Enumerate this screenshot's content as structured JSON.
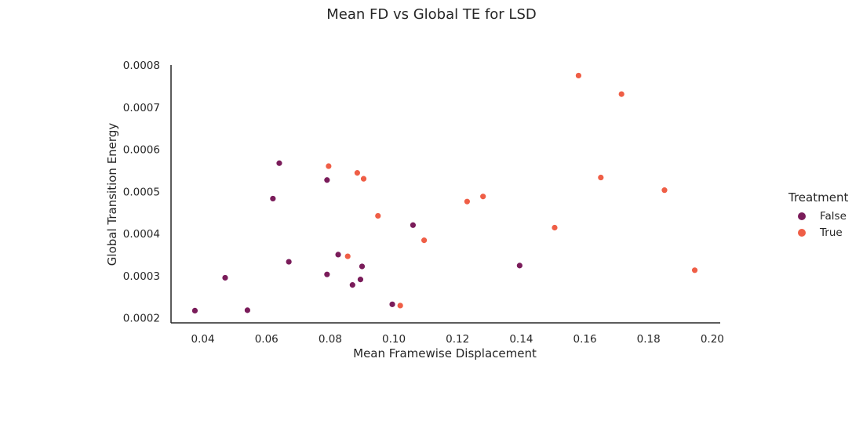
{
  "chart_data": {
    "type": "scatter",
    "title": "Mean FD vs Global TE for LSD",
    "xlabel": "Mean Framewise Displacement",
    "ylabel": "Global Transition Energy",
    "xlim": [
      0.03,
      0.2025
    ],
    "ylim": [
      0.000188,
      0.0008
    ],
    "x_ticks": [
      0.04,
      0.06,
      0.08,
      0.1,
      0.12,
      0.14,
      0.16,
      0.18,
      0.2
    ],
    "x_tick_labels": [
      "0.04",
      "0.06",
      "0.08",
      "0.10",
      "0.12",
      "0.14",
      "0.16",
      "0.18",
      "0.20"
    ],
    "y_ticks": [
      0.0002,
      0.0003,
      0.0004,
      0.0005,
      0.0006,
      0.0007,
      0.0008
    ],
    "y_tick_labels": [
      "0.0002",
      "0.0003",
      "0.0004",
      "0.0005",
      "0.0006",
      "0.0007",
      "0.0008"
    ],
    "grid": false,
    "legend": {
      "title": "Treatment",
      "placement": "right",
      "entries": [
        {
          "label": "False",
          "color": "#7a1c5a"
        },
        {
          "label": "True",
          "color": "#ef5e46"
        }
      ]
    },
    "series": [
      {
        "name": "False",
        "color": "#7a1c5a",
        "points": [
          [
            0.0375,
            0.000217
          ],
          [
            0.047,
            0.000295
          ],
          [
            0.054,
            0.000218
          ],
          [
            0.062,
            0.000483
          ],
          [
            0.064,
            0.000567
          ],
          [
            0.067,
            0.000333
          ],
          [
            0.079,
            0.000527
          ],
          [
            0.079,
            0.000303
          ],
          [
            0.0825,
            0.00035
          ],
          [
            0.087,
            0.000278
          ],
          [
            0.0895,
            0.000291
          ],
          [
            0.09,
            0.000322
          ],
          [
            0.0995,
            0.000232
          ],
          [
            0.106,
            0.00042
          ],
          [
            0.1395,
            0.000324
          ]
        ]
      },
      {
        "name": "True",
        "color": "#ef5e46",
        "points": [
          [
            0.0795,
            0.00056
          ],
          [
            0.0855,
            0.000346
          ],
          [
            0.0885,
            0.000544
          ],
          [
            0.0905,
            0.00053
          ],
          [
            0.095,
            0.000442
          ],
          [
            0.102,
            0.000229
          ],
          [
            0.1095,
            0.000384
          ],
          [
            0.123,
            0.000476
          ],
          [
            0.128,
            0.000488
          ],
          [
            0.1505,
            0.000414
          ],
          [
            0.158,
            0.000775
          ],
          [
            0.165,
            0.000533
          ],
          [
            0.1715,
            0.000731
          ],
          [
            0.185,
            0.000503
          ],
          [
            0.1945,
            0.000313
          ]
        ]
      }
    ]
  }
}
